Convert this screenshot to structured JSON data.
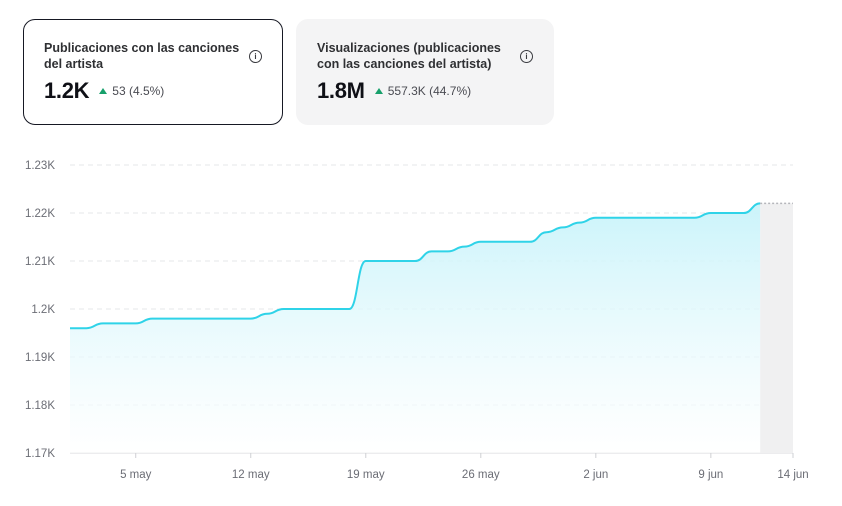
{
  "cards": [
    {
      "title": "Publicaciones con las canciones del artista",
      "value": "1.2K",
      "delta": "53 (4.5%)",
      "info_icon": "info-icon",
      "selected": true
    },
    {
      "title": "Visualizaciones (publicaciones con las canciones del artista)",
      "value": "1.8M",
      "delta": "557.3K (44.7%)",
      "info_icon": "info-icon",
      "selected": false
    }
  ],
  "colors": {
    "line": "#2fd3e8",
    "up_arrow": "#17a06b",
    "selected_border": "#161823"
  },
  "chart_data": {
    "type": "area",
    "x_tick_labels": [
      "5 may",
      "12 may",
      "19 may",
      "26 may",
      "2 jun",
      "9 jun",
      "14 jun"
    ],
    "y_tick_labels": [
      "1.17K",
      "1.18K",
      "1.19K",
      "1.2K",
      "1.21K",
      "1.22K",
      "1.23K"
    ],
    "ylim": [
      1170,
      1230
    ],
    "grid": true,
    "x": [
      "2024-05-01",
      "2024-05-02",
      "2024-05-03",
      "2024-05-04",
      "2024-05-05",
      "2024-05-06",
      "2024-05-07",
      "2024-05-08",
      "2024-05-09",
      "2024-05-10",
      "2024-05-11",
      "2024-05-12",
      "2024-05-13",
      "2024-05-14",
      "2024-05-15",
      "2024-05-16",
      "2024-05-17",
      "2024-05-18",
      "2024-05-19",
      "2024-05-20",
      "2024-05-21",
      "2024-05-22",
      "2024-05-23",
      "2024-05-24",
      "2024-05-25",
      "2024-05-26",
      "2024-05-27",
      "2024-05-28",
      "2024-05-29",
      "2024-05-30",
      "2024-05-31",
      "2024-06-01",
      "2024-06-02",
      "2024-06-03",
      "2024-06-04",
      "2024-06-05",
      "2024-06-06",
      "2024-06-07",
      "2024-06-08",
      "2024-06-09",
      "2024-06-10",
      "2024-06-11",
      "2024-06-12"
    ],
    "values": [
      1196,
      1196,
      1197,
      1197,
      1197,
      1198,
      1198,
      1198,
      1198,
      1198,
      1198,
      1198,
      1199,
      1200,
      1200,
      1200,
      1200,
      1200,
      1210,
      1210,
      1210,
      1210,
      1212,
      1212,
      1213,
      1214,
      1214,
      1214,
      1214,
      1216,
      1217,
      1218,
      1219,
      1219,
      1219,
      1219,
      1219,
      1219,
      1219,
      1220,
      1220,
      1220,
      1222
    ],
    "projection": {
      "from": "2024-06-11",
      "to": "2024-06-14",
      "value": 1222
    }
  }
}
